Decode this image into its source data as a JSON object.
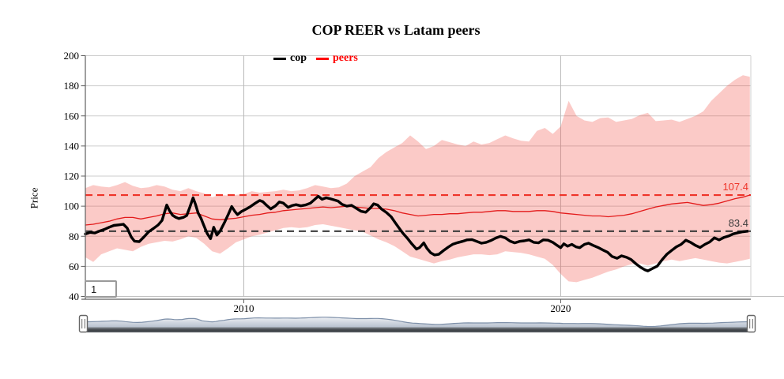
{
  "header": {
    "title": "COP REER vs Latam peers"
  },
  "legend": {
    "items": [
      {
        "label": "cop",
        "color": "#000000"
      },
      {
        "label": "peers",
        "color": "#ff0000"
      }
    ]
  },
  "annotation_box": {
    "label": "1"
  },
  "chart_data": {
    "type": "line",
    "title": "COP REER vs Latam peers",
    "xlabel": "",
    "ylabel": "Price",
    "xlim": [
      2005,
      2026
    ],
    "ylim": [
      40,
      200
    ],
    "y_ticks": [
      40,
      60,
      80,
      100,
      120,
      140,
      160,
      180,
      200
    ],
    "x_ticks": [
      2010,
      2020
    ],
    "grid": true,
    "legend_position": "top",
    "colors": {
      "grid": "#cdcdcd",
      "vgrid": "#b9b9b9",
      "axis": "#606060",
      "right_border": "#cfcfcf",
      "background": "#ffffff"
    },
    "hlines": [
      {
        "value": 107.4,
        "label": "107.4",
        "color": "#ee3429",
        "style": "dashed"
      },
      {
        "value": 83.4,
        "label": "83.4",
        "color": "#3c3c3c",
        "style": "dashed"
      }
    ],
    "band": {
      "name": "peers range",
      "fill": "#f25046",
      "opacity": 0.3,
      "x": [
        2005,
        2005.25,
        2005.5,
        2005.75,
        2006,
        2006.25,
        2006.5,
        2006.75,
        2007,
        2007.25,
        2007.5,
        2007.75,
        2008,
        2008.25,
        2008.5,
        2008.75,
        2009,
        2009.25,
        2009.5,
        2009.75,
        2010,
        2010.25,
        2010.5,
        2010.75,
        2011,
        2011.25,
        2011.5,
        2011.75,
        2012,
        2012.25,
        2012.5,
        2012.75,
        2013,
        2013.25,
        2013.5,
        2013.75,
        2014,
        2014.25,
        2014.5,
        2014.75,
        2015,
        2015.25,
        2015.5,
        2015.75,
        2016,
        2016.25,
        2016.5,
        2016.75,
        2017,
        2017.25,
        2017.5,
        2017.75,
        2018,
        2018.25,
        2018.5,
        2018.75,
        2019,
        2019.25,
        2019.5,
        2019.75,
        2020,
        2020.25,
        2020.5,
        2020.75,
        2021,
        2021.25,
        2021.5,
        2021.75,
        2022,
        2022.25,
        2022.5,
        2022.75,
        2023,
        2023.25,
        2023.5,
        2023.75,
        2024,
        2024.25,
        2024.5,
        2024.75,
        2025,
        2025.25,
        2025.5,
        2025.75,
        2025.97
      ],
      "lower": [
        66,
        63,
        68,
        70,
        72,
        71,
        70,
        73,
        75,
        76,
        77,
        76.5,
        78,
        80,
        79,
        75,
        70,
        68.5,
        72,
        76,
        78,
        80,
        81,
        82.5,
        84,
        85.5,
        86,
        85.5,
        86,
        87.5,
        88,
        87,
        86,
        85,
        84,
        83,
        80.5,
        78,
        76,
        73.5,
        70,
        66.5,
        65,
        63.5,
        62,
        63.5,
        64.5,
        66,
        67,
        68,
        68,
        67.5,
        68,
        70,
        69.5,
        69,
        68,
        66.5,
        65,
        61,
        55,
        50,
        49.5,
        51,
        52.5,
        54.5,
        56.5,
        58,
        60,
        61.5,
        62,
        60.5,
        62,
        63.5,
        64.5,
        63.5,
        64.5,
        65.5,
        64.5,
        63.5,
        62.5,
        62,
        63,
        64,
        65
      ],
      "upper": [
        112,
        114,
        113,
        112.5,
        114,
        116,
        113.5,
        112,
        112.5,
        114,
        113,
        111,
        110,
        112,
        110,
        108.5,
        106,
        107.5,
        107,
        107.5,
        108,
        110,
        109,
        109.5,
        110,
        111,
        110,
        110.5,
        112,
        114,
        113,
        112,
        112.5,
        115,
        120,
        123,
        126,
        132,
        136,
        139,
        142,
        147,
        143,
        138,
        140,
        144,
        142.5,
        141,
        140,
        143,
        141,
        142,
        144.5,
        147,
        145,
        143.5,
        143,
        150,
        152,
        148,
        153,
        170,
        160,
        157,
        156,
        158.5,
        159,
        156,
        157,
        158,
        160.5,
        162,
        156.5,
        157,
        157.5,
        156,
        158,
        160,
        163,
        170,
        175,
        180,
        184,
        187,
        186
      ]
    },
    "series": [
      {
        "name": "cop",
        "color": "#000000",
        "width": 3.4,
        "x": [
          2005,
          2005.15,
          2005.3,
          2005.45,
          2005.6,
          2005.75,
          2005.9,
          2006.05,
          2006.2,
          2006.32,
          2006.45,
          2006.55,
          2006.7,
          2006.85,
          2007,
          2007.15,
          2007.3,
          2007.42,
          2007.5,
          2007.57,
          2007.65,
          2007.75,
          2007.85,
          2007.95,
          2008.1,
          2008.2,
          2008.3,
          2008.4,
          2008.48,
          2008.56,
          2008.65,
          2008.73,
          2008.84,
          2008.95,
          2009.05,
          2009.15,
          2009.25,
          2009.4,
          2009.52,
          2009.62,
          2009.72,
          2009.8,
          2009.92,
          2010.05,
          2010.2,
          2010.35,
          2010.5,
          2010.6,
          2010.72,
          2010.85,
          2011,
          2011.12,
          2011.25,
          2011.4,
          2011.52,
          2011.65,
          2011.8,
          2011.95,
          2012.1,
          2012.22,
          2012.35,
          2012.47,
          2012.6,
          2012.72,
          2012.85,
          2012.97,
          2013.1,
          2013.25,
          2013.4,
          2013.55,
          2013.7,
          2013.85,
          2014,
          2014.1,
          2014.22,
          2014.35,
          2014.5,
          2014.65,
          2014.78,
          2014.9,
          2015.02,
          2015.15,
          2015.3,
          2015.45,
          2015.55,
          2015.68,
          2015.78,
          2015.9,
          2016.02,
          2016.15,
          2016.3,
          2016.45,
          2016.6,
          2016.75,
          2016.9,
          2017.05,
          2017.2,
          2017.35,
          2017.5,
          2017.65,
          2017.8,
          2017.95,
          2018.1,
          2018.25,
          2018.4,
          2018.55,
          2018.7,
          2018.85,
          2019,
          2019.15,
          2019.3,
          2019.45,
          2019.6,
          2019.75,
          2019.9,
          2020,
          2020.1,
          2020.22,
          2020.35,
          2020.48,
          2020.6,
          2020.75,
          2020.88,
          2021.02,
          2021.18,
          2021.32,
          2021.48,
          2021.62,
          2021.78,
          2021.92,
          2022.08,
          2022.22,
          2022.38,
          2022.52,
          2022.65,
          2022.75,
          2022.9,
          2023.05,
          2023.2,
          2023.35,
          2023.5,
          2023.65,
          2023.8,
          2023.95,
          2024.1,
          2024.25,
          2024.4,
          2024.55,
          2024.7,
          2024.85,
          2025,
          2025.15,
          2025.3,
          2025.45,
          2025.6,
          2025.75,
          2025.9
        ],
        "values": [
          81.5,
          82.6,
          82.2,
          83.5,
          84.6,
          86,
          87.2,
          87.6,
          88,
          85.5,
          79.5,
          76.8,
          76.4,
          79.6,
          83,
          85.2,
          87.6,
          90.5,
          96,
          100.8,
          97.2,
          94,
          92.6,
          91.8,
          92.6,
          93.8,
          99.5,
          105.6,
          101,
          95.5,
          92,
          87.6,
          82,
          78.4,
          86,
          80.8,
          83.4,
          89.5,
          95,
          99.8,
          96.5,
          94.4,
          96.4,
          97.8,
          99.6,
          101.8,
          103.8,
          103,
          100.6,
          98.2,
          100.2,
          102.8,
          102,
          99.2,
          100.4,
          101,
          100.2,
          100.8,
          102,
          104.2,
          106.6,
          104.6,
          105.6,
          105,
          104.2,
          103.4,
          101.2,
          100,
          100.6,
          98.6,
          96.6,
          96,
          99,
          101.6,
          100.8,
          98,
          95.8,
          93,
          89,
          85.5,
          82,
          79,
          75,
          71.5,
          72.5,
          75.6,
          72,
          69,
          67.6,
          68,
          70.5,
          72.8,
          74.8,
          75.8,
          76.6,
          77.6,
          77.8,
          76.6,
          75.4,
          76,
          77.2,
          78.8,
          80,
          79,
          76.8,
          75.6,
          76.6,
          77,
          77.6,
          76,
          75.6,
          77.6,
          77.4,
          76,
          73.8,
          72.4,
          75,
          73.4,
          74.6,
          73,
          72.4,
          74.6,
          75.4,
          74,
          72.6,
          71,
          69.4,
          66.6,
          65.4,
          67,
          66,
          64.6,
          61.6,
          59.4,
          57.8,
          57,
          58.6,
          60.2,
          64.4,
          68,
          70.6,
          73,
          74.6,
          77.4,
          76,
          74,
          72.6,
          74.6,
          76.2,
          79,
          77.6,
          79.2,
          80.2,
          81.6,
          82.4,
          83,
          83.4
        ],
        "last_value": 83.4
      },
      {
        "name": "peers",
        "color": "#e31b1b",
        "width": 1.3,
        "x": [
          2005,
          2005.25,
          2005.5,
          2005.75,
          2006,
          2006.25,
          2006.5,
          2006.75,
          2007,
          2007.25,
          2007.5,
          2007.75,
          2008,
          2008.25,
          2008.5,
          2008.75,
          2009,
          2009.25,
          2009.5,
          2009.75,
          2010,
          2010.25,
          2010.5,
          2010.75,
          2011,
          2011.25,
          2011.5,
          2011.75,
          2012,
          2012.25,
          2012.5,
          2012.75,
          2013,
          2013.25,
          2013.5,
          2013.75,
          2014,
          2014.25,
          2014.5,
          2014.75,
          2015,
          2015.25,
          2015.5,
          2015.75,
          2016,
          2016.25,
          2016.5,
          2016.75,
          2017,
          2017.25,
          2017.5,
          2017.75,
          2018,
          2018.25,
          2018.5,
          2018.75,
          2019,
          2019.25,
          2019.5,
          2019.75,
          2020,
          2020.25,
          2020.5,
          2020.75,
          2021,
          2021.25,
          2021.5,
          2021.75,
          2022,
          2022.25,
          2022.5,
          2022.75,
          2023,
          2023.25,
          2023.5,
          2023.75,
          2024,
          2024.25,
          2024.5,
          2024.75,
          2025,
          2025.25,
          2025.5,
          2025.75,
          2025.97
        ],
        "values": [
          87.5,
          88,
          89,
          90,
          91.5,
          92.5,
          92.5,
          91.5,
          92.5,
          93.5,
          95,
          95.5,
          94.5,
          95,
          95.5,
          93.5,
          91.5,
          91,
          91.5,
          92,
          93,
          94,
          94.5,
          95.5,
          96,
          97,
          97.5,
          98,
          98.5,
          99,
          99.5,
          99,
          99.5,
          100,
          99.5,
          99,
          98.5,
          98.5,
          98,
          97,
          95.5,
          94.5,
          93.5,
          94,
          94.5,
          94.5,
          95,
          95,
          95.5,
          96,
          96,
          96.5,
          97,
          97,
          96.5,
          96.5,
          96.5,
          97,
          97,
          96.5,
          95.5,
          95,
          94.5,
          94,
          93.5,
          93.5,
          93,
          93.5,
          94,
          95,
          96.5,
          98,
          99.5,
          100.5,
          101.5,
          102,
          102.5,
          101.5,
          100.5,
          101,
          102,
          103.5,
          105,
          106,
          107.4
        ],
        "last_value": 107.4
      }
    ]
  },
  "navigator": {
    "source_series": "cop",
    "area_fill_top": "#edeff3",
    "area_fill_bottom": "#b5bfcd",
    "area_stroke": "#7e90a9",
    "track_top": "#82878e",
    "track_bottom": "#3e4247",
    "handle_fill": "#ffffff",
    "handle_border": "#666666"
  }
}
